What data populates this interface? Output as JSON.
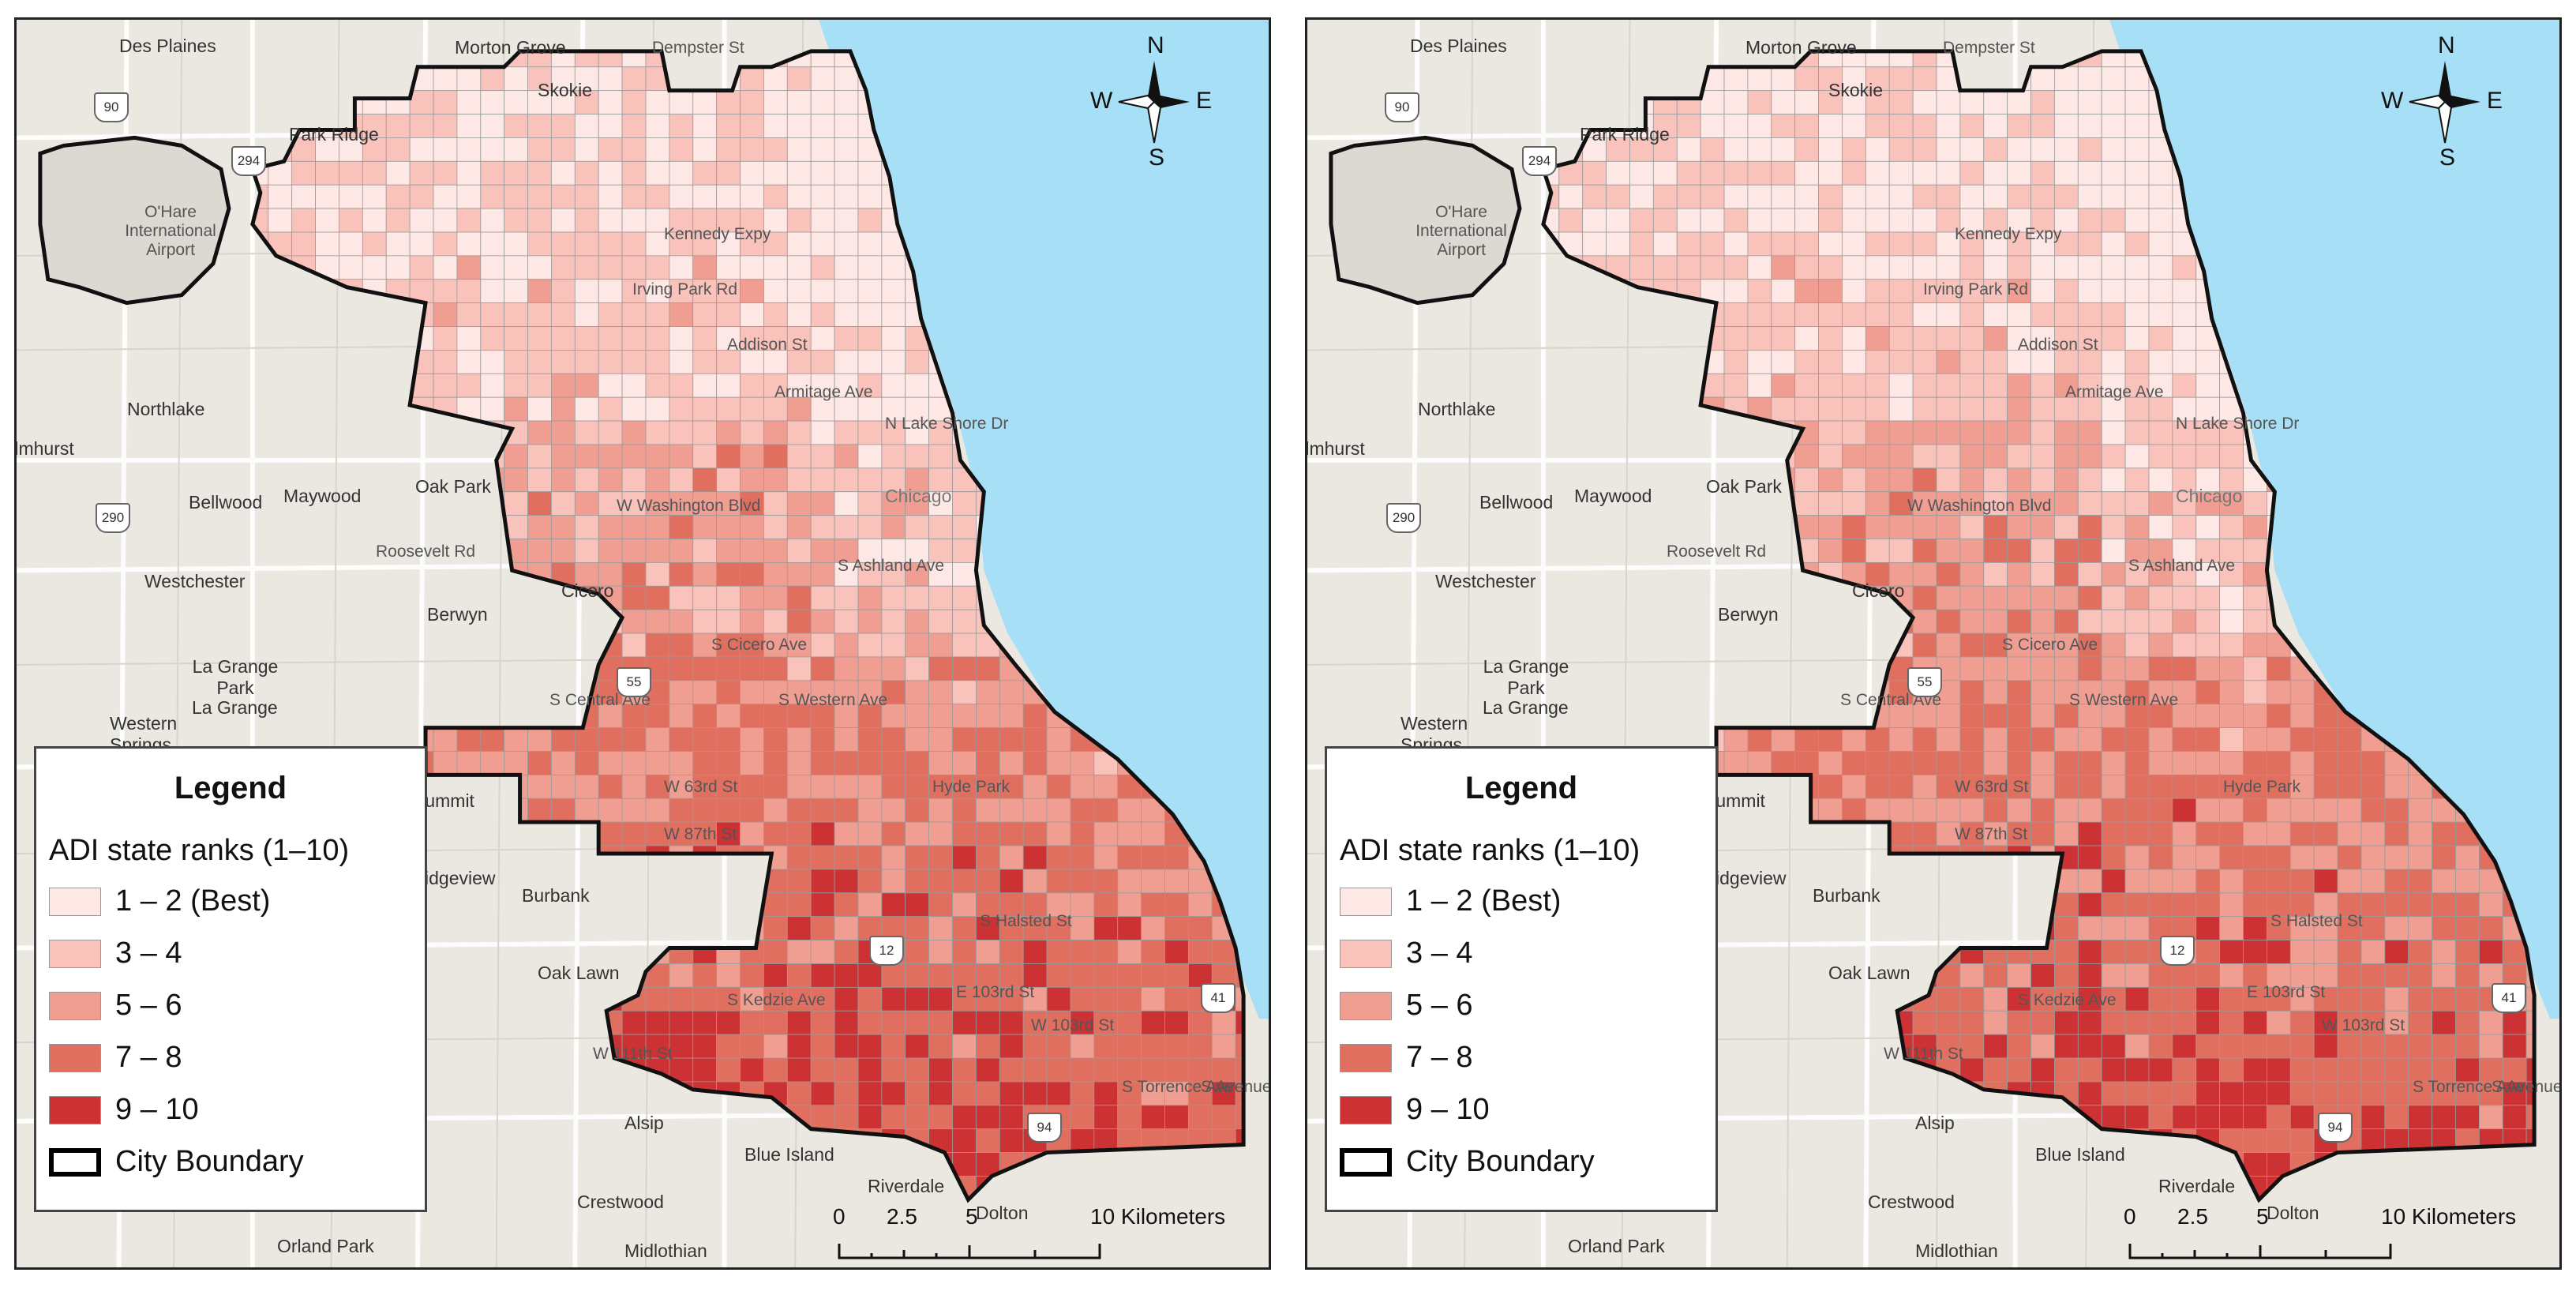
{
  "maps": [
    {
      "legend": {
        "title": "Legend",
        "subtitle": "ADI state ranks (1–10)",
        "items": [
          {
            "label": "1 – 2 (Best)",
            "color": "#fde8e6"
          },
          {
            "label": "3 – 4",
            "color": "#f9c3bc"
          },
          {
            "label": "5 – 6",
            "color": "#f09e92"
          },
          {
            "label": "7 – 8",
            "color": "#e06f60"
          },
          {
            "label": "9 – 10",
            "color": "#cc3233"
          },
          {
            "label": "City Boundary",
            "color": "#000000"
          }
        ]
      },
      "compass": {
        "n": "N",
        "s": "S",
        "e": "E",
        "w": "W"
      },
      "scale": {
        "ticks": [
          "0",
          "2.5",
          "5",
          "10 Kilometers"
        ]
      },
      "places": [
        "Des Plaines",
        "Morton Grove",
        "Dempster St",
        "Skokie",
        "Park Ridge",
        "O'Hare International Airport",
        "Northlake",
        "Elmhurst",
        "Bellwood",
        "Maywood",
        "Oak Park",
        "Chicago",
        "Roosevelt Rd",
        "Westchester",
        "Cicero",
        "Berwyn",
        "La Grange Park",
        "La Grange",
        "Western Springs",
        "Summit",
        "Bridgeview",
        "Burbank",
        "Oak Lawn",
        "Alsip",
        "Blue Island",
        "Riverdale",
        "Dolton",
        "Crestwood",
        "Orland Park",
        "Midlothian",
        "W 111th St",
        "S Central Ave",
        "S Western Ave",
        "S Kedzie Ave",
        "S Torrence Ave",
        "S Avenue O",
        "W 63rd St",
        "W 87th St",
        "W 103rd St",
        "W Washington Blvd",
        "S Ashland Ave",
        "S Cicero Ave",
        "Hyde Park",
        "E 103rd St",
        "S Halsted St",
        "N Lake Shore Dr",
        "Irving Park Rd",
        "Addison St",
        "Armitage Ave",
        "Kennedy Expy"
      ],
      "shields": [
        "90",
        "294",
        "290",
        "94",
        "12",
        "41",
        "55"
      ]
    },
    {
      "legend": {
        "title": "Legend",
        "subtitle": "ADI state ranks (1–10)",
        "items": [
          {
            "label": "1 – 2 (Best)",
            "color": "#fde8e6"
          },
          {
            "label": "3 – 4",
            "color": "#f9c3bc"
          },
          {
            "label": "5 – 6",
            "color": "#f09e92"
          },
          {
            "label": "7 – 8",
            "color": "#e06f60"
          },
          {
            "label": "9 – 10",
            "color": "#cc3233"
          },
          {
            "label": "City Boundary",
            "color": "#000000"
          }
        ]
      },
      "compass": {
        "n": "N",
        "s": "S",
        "e": "E",
        "w": "W"
      },
      "scale": {
        "ticks": [
          "0",
          "2.5",
          "5",
          "10 Kilometers"
        ]
      },
      "places": [
        "Des Plaines",
        "Morton Grove",
        "Dempster St",
        "Skokie",
        "Park Ridge",
        "O'Hare International Airport",
        "Northlake",
        "Elmhurst",
        "Bellwood",
        "Maywood",
        "Oak Park",
        "Chicago",
        "Roosevelt Rd",
        "Westchester",
        "Cicero",
        "Berwyn",
        "La Grange Park",
        "La Grange",
        "Western Springs",
        "Summit",
        "Bridgeview",
        "Burbank",
        "Oak Lawn",
        "Alsip",
        "Blue Island",
        "Riverdale",
        "Dolton",
        "Crestwood",
        "Orland Park",
        "Midlothian",
        "W 111th St",
        "S Central Ave",
        "S Western Ave",
        "S Kedzie Ave",
        "S Torrence Ave",
        "S Avenue O",
        "W 63rd St",
        "W 87th St",
        "W 103rd St",
        "W Washington Blvd",
        "S Ashland Ave",
        "S Cicero Ave",
        "Hyde Park",
        "E 103rd St",
        "S Halsted St",
        "N Lake Shore Dr",
        "Irving Park Rd",
        "Addison St",
        "Armitage Ave",
        "Kennedy Expy"
      ],
      "shields": [
        "90",
        "294",
        "290",
        "94",
        "12",
        "41",
        "55"
      ]
    }
  ]
}
